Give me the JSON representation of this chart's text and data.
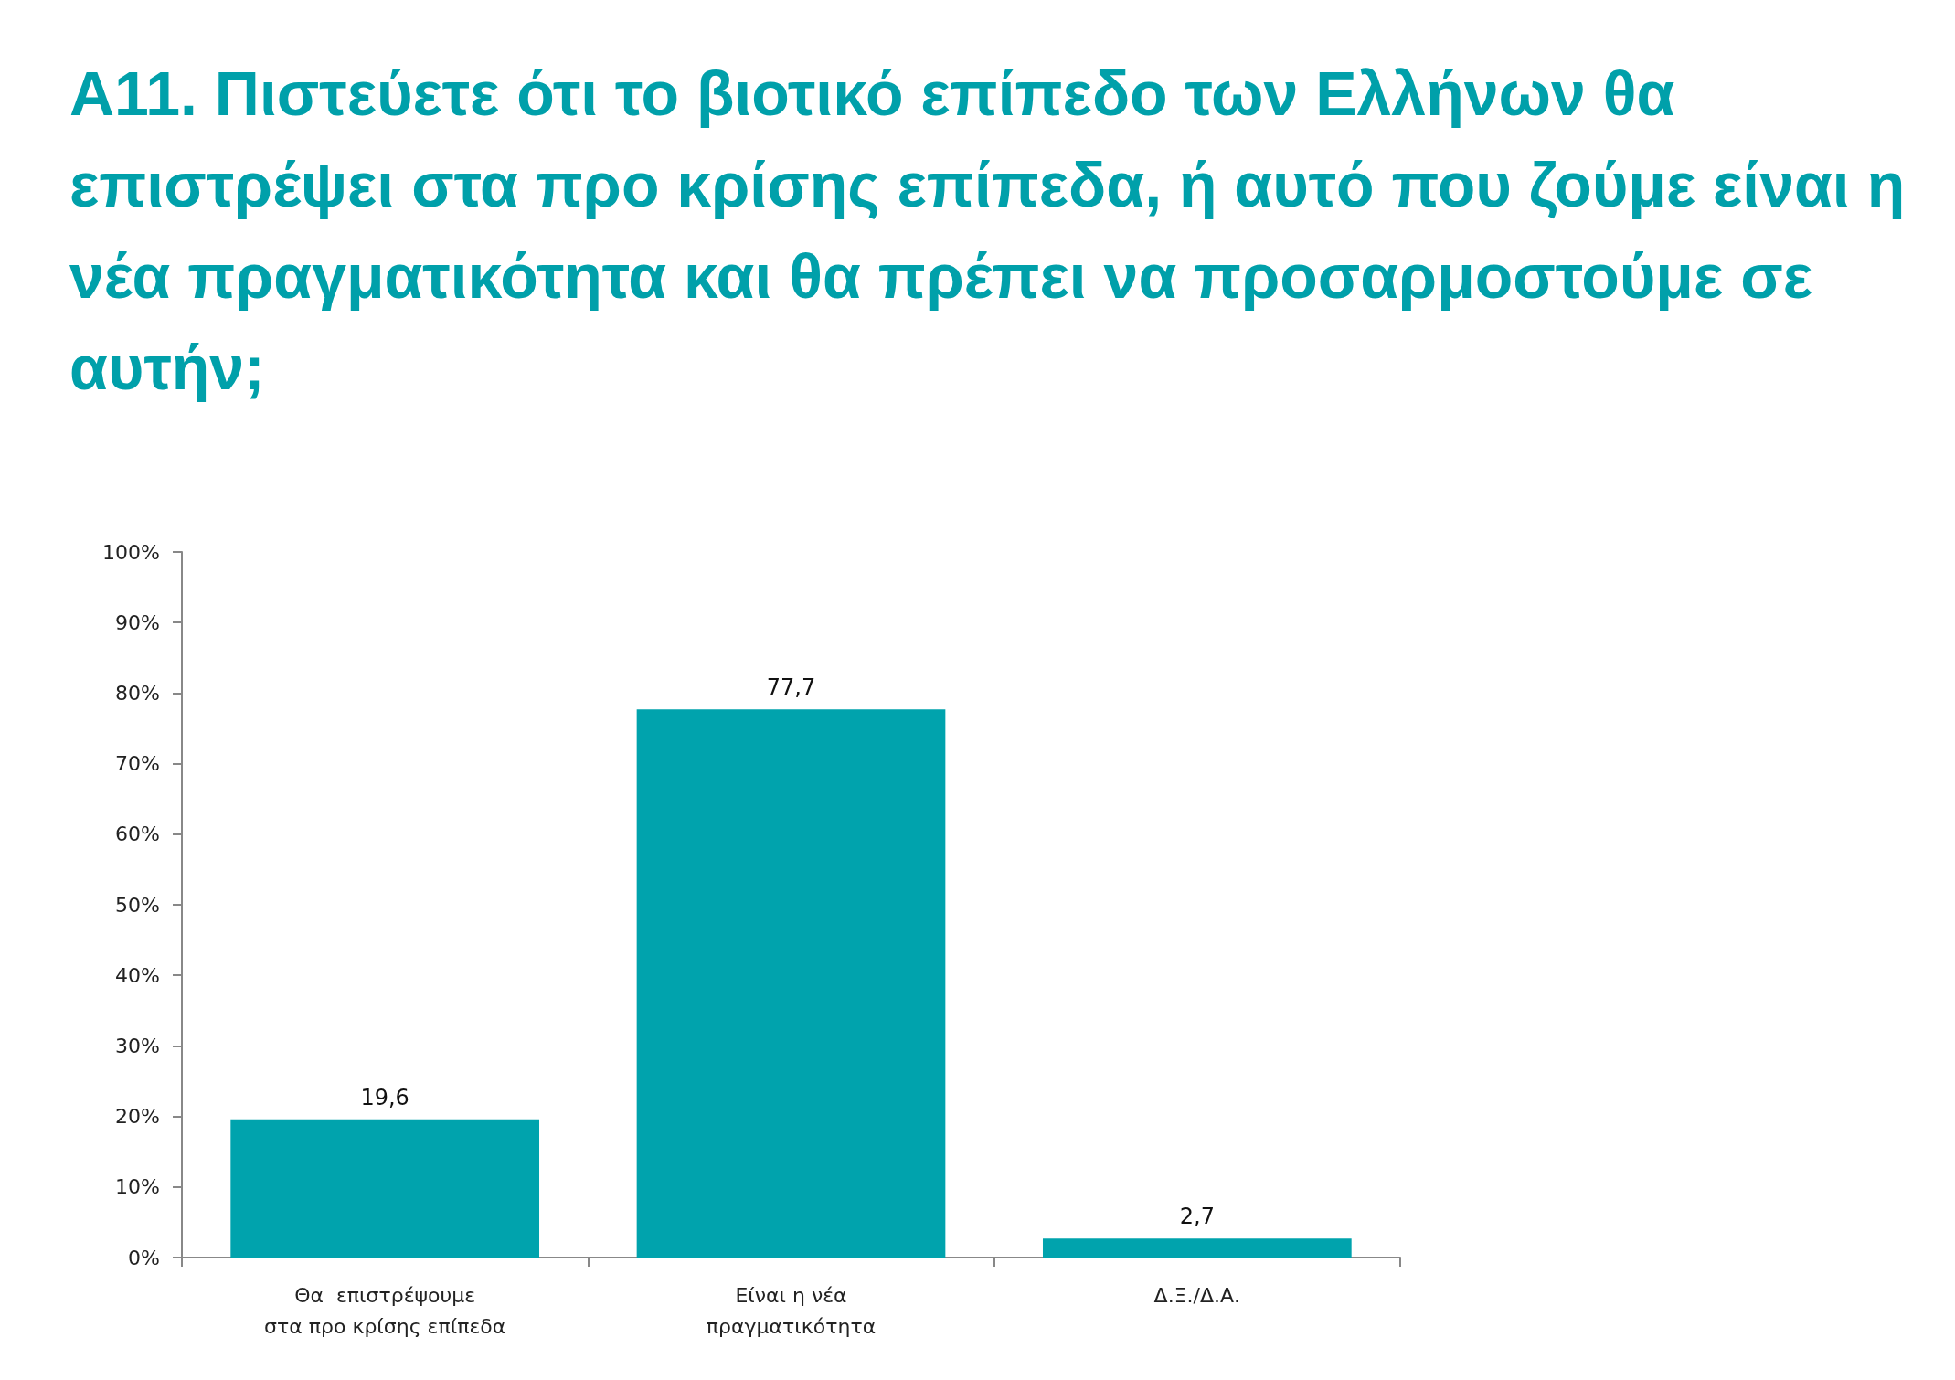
{
  "chart_data": {
    "type": "bar",
    "title": "A11. Πιστεύετε ότι το βιοτικό επίπεδο των Ελλήνων θα επιστρέψει στα προ κρίσης επίπεδα, ή αυτό που ζούμε είναι η νέα πραγματικότητα και θα πρέπει να προσαρμοστούμε σε αυτήν;",
    "categories": [
      "Θα  επιστρέψουμε\nστα προ κρίσης επίπεδα",
      "Είναι η νέα\nπραγματικότητα",
      "Δ.Ξ./Δ.Α."
    ],
    "values": [
      19.6,
      77.7,
      2.7
    ],
    "value_labels": [
      "19,6",
      "77,7",
      "2,7"
    ],
    "color": "#00a3ad",
    "ylim": [
      0,
      100
    ],
    "yticks": [
      {
        "value": 0,
        "label": "0%"
      },
      {
        "value": 10,
        "label": "10%"
      },
      {
        "value": 20,
        "label": "20%"
      },
      {
        "value": 30,
        "label": "30%"
      },
      {
        "value": 40,
        "label": "40%"
      },
      {
        "value": 50,
        "label": "50%"
      },
      {
        "value": 60,
        "label": "60%"
      },
      {
        "value": 70,
        "label": "70%"
      },
      {
        "value": 80,
        "label": "80%"
      },
      {
        "value": 90,
        "label": "90%"
      },
      {
        "value": 100,
        "label": "100%"
      }
    ],
    "grid": false
  }
}
